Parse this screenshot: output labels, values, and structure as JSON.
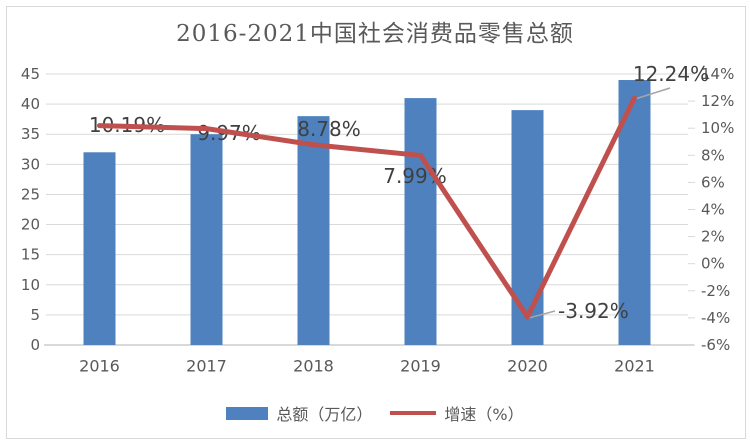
{
  "title": "2016-2021中国社会消费品零售总额",
  "colors": {
    "bar": "#4E81BD",
    "line": "#C0504D",
    "grid": "#D9D9D9",
    "axis_text": "#595959",
    "data_label_text": "#404040",
    "leader": "#A6A6A6",
    "frame": "#D9D9D9"
  },
  "chart_data": {
    "type": "combo bar+line",
    "title": "2016-2021中国社会消费品零售总额",
    "categories": [
      "2016",
      "2017",
      "2018",
      "2019",
      "2020",
      "2021"
    ],
    "series": [
      {
        "name": "总额（万亿）",
        "type": "bar",
        "axis": "left",
        "values": [
          32,
          35,
          38,
          41,
          39,
          44
        ]
      },
      {
        "name": "增速（%）",
        "type": "line",
        "axis": "right",
        "values": [
          10.19,
          9.97,
          8.78,
          7.99,
          -3.92,
          12.24
        ],
        "labels": [
          "10.19%",
          "9.97%",
          "8.78%",
          "7.99%",
          "-3.92%",
          "12.24%"
        ]
      }
    ],
    "left_axis": {
      "min": 0,
      "max": 45,
      "step": 5,
      "ticks": [
        "45",
        "40",
        "35",
        "30",
        "25",
        "20",
        "15",
        "10",
        "5",
        "0"
      ]
    },
    "right_axis": {
      "min": -6,
      "max": 14,
      "step": 2,
      "ticks": [
        "14%",
        "12%",
        "10%",
        "8%",
        "6%",
        "4%",
        "2%",
        "0%",
        "-2%",
        "-4%",
        "-6%"
      ]
    },
    "grid": true,
    "legend_position": "bottom"
  }
}
